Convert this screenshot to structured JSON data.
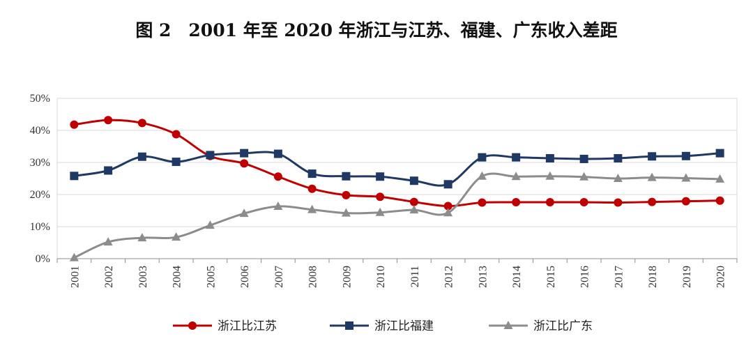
{
  "chart_data": {
    "type": "line",
    "title": "图 2　2001 年至 2020 年浙江与江苏、福建、广东收入差距",
    "xlabel": "",
    "ylabel": "",
    "categories": [
      "2001",
      "2002",
      "2003",
      "2004",
      "2005",
      "2006",
      "2007",
      "2008",
      "2009",
      "2010",
      "2011",
      "2012",
      "2013",
      "2014",
      "2015",
      "2016",
      "2017",
      "2018",
      "2019",
      "2020"
    ],
    "ylim": [
      0,
      50
    ],
    "yticks": [
      "0%",
      "10%",
      "20%",
      "30%",
      "40%",
      "50%"
    ],
    "grid": true,
    "legend_position": "bottom",
    "series": [
      {
        "name": "浙江比江苏",
        "color": "#c00000",
        "marker": "circle",
        "values": [
          41.8,
          43.2,
          42.3,
          38.8,
          32.0,
          29.7,
          25.6,
          21.8,
          19.8,
          19.3,
          17.7,
          16.4,
          17.5,
          17.6,
          17.6,
          17.6,
          17.5,
          17.7,
          17.9,
          18.1
        ]
      },
      {
        "name": "浙江比福建",
        "color": "#1f3864",
        "marker": "square",
        "values": [
          25.8,
          27.5,
          31.8,
          30.2,
          32.3,
          32.9,
          32.7,
          26.5,
          25.7,
          25.6,
          24.3,
          23.2,
          31.6,
          31.6,
          31.3,
          31.1,
          31.3,
          31.9,
          32.0,
          32.9
        ]
      },
      {
        "name": "浙江比广东",
        "color": "#8c8c8c",
        "marker": "triangle",
        "values": [
          0.3,
          5.2,
          6.5,
          6.7,
          10.4,
          14.1,
          16.3,
          15.3,
          14.2,
          14.4,
          15.2,
          14.3,
          25.7,
          25.6,
          25.7,
          25.5,
          25.0,
          25.3,
          25.1,
          24.8
        ]
      }
    ]
  }
}
